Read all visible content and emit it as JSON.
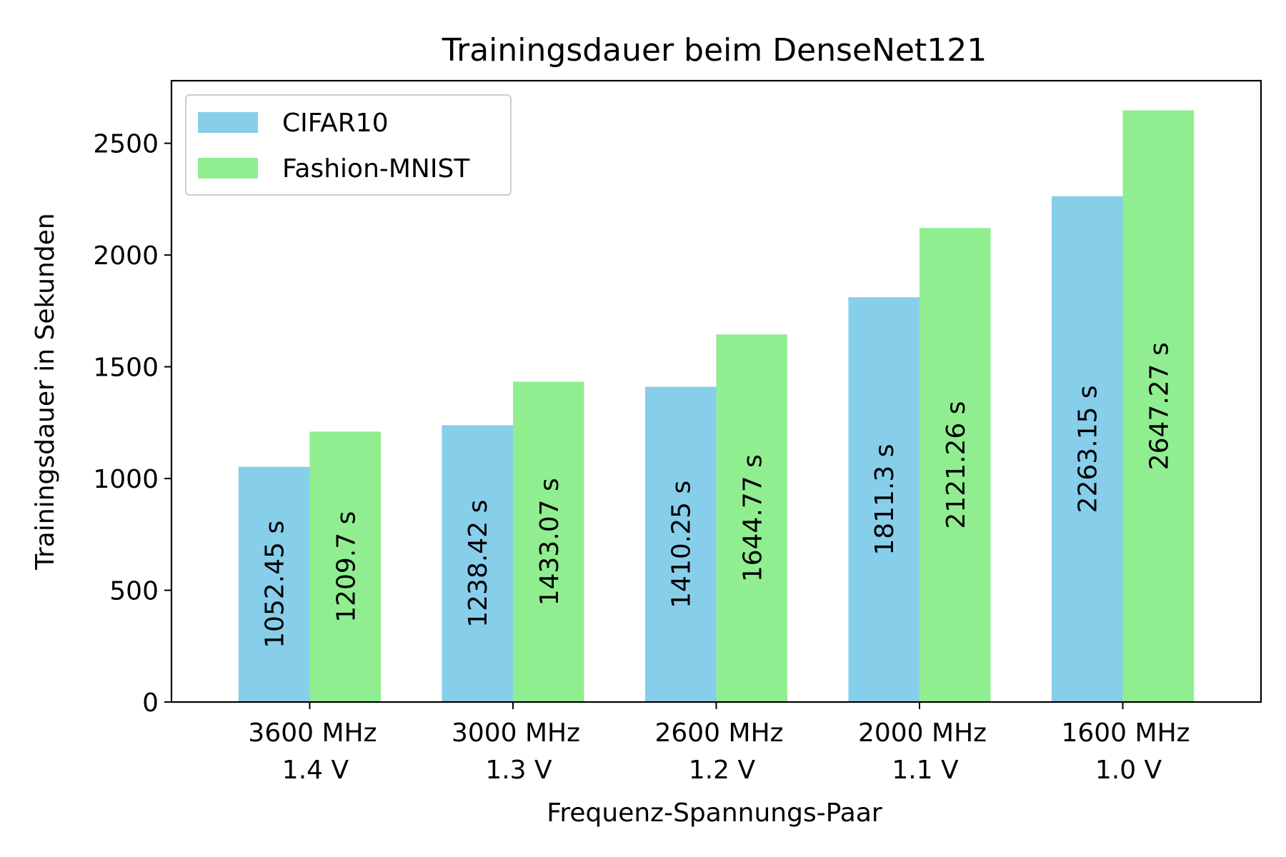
{
  "chart_data": {
    "type": "bar",
    "title": "Trainingsdauer beim DenseNet121",
    "xlabel": "Frequenz-Spannungs-Paar",
    "ylabel": "Trainingsdauer in Sekunden",
    "categories": [
      [
        "3600 MHz",
        "1.4 V"
      ],
      [
        "3000 MHz",
        "1.3 V"
      ],
      [
        "2600 MHz",
        "1.2 V"
      ],
      [
        "2000 MHz",
        "1.1 V"
      ],
      [
        "1600 MHz",
        "1.0 V"
      ]
    ],
    "series": [
      {
        "name": "CIFAR10",
        "color": "#87ceeb",
        "values": [
          1052.45,
          1238.42,
          1410.25,
          1811.3,
          2263.15
        ],
        "labels": [
          "1052.45 s",
          "1238.42 s",
          "1410.25 s",
          "1811.3 s",
          "2263.15 s"
        ]
      },
      {
        "name": "Fashion-MNIST",
        "color": "#90ee90",
        "values": [
          1209.7,
          1433.07,
          1644.77,
          2121.26,
          2647.27
        ],
        "labels": [
          "1209.7 s",
          "1433.07 s",
          "1644.77 s",
          "2121.26 s",
          "2647.27 s"
        ]
      }
    ],
    "ylim": [
      0,
      2780
    ],
    "yticks": [
      0,
      500,
      1000,
      1500,
      2000,
      2500
    ],
    "ytick_labels": [
      "0",
      "500",
      "1000",
      "1500",
      "2000",
      "2500"
    ],
    "grid": false,
    "legend_position": "top-left"
  }
}
